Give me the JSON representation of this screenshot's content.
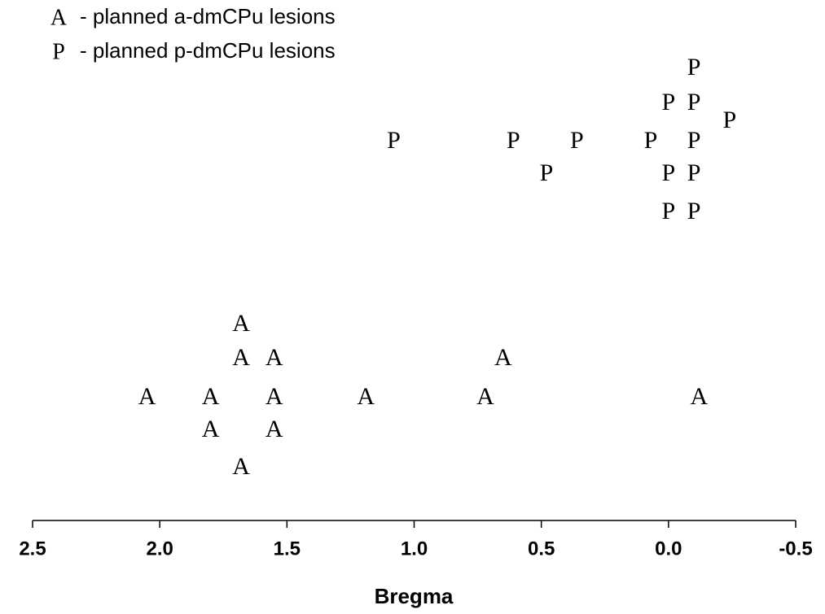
{
  "chart_data": {
    "type": "strip",
    "x_label": "Bregma",
    "xlim": [
      2.5,
      -0.5
    ],
    "xticks": [
      2.5,
      {
        "value": 2,
        "label": "2.0"
      },
      1.5,
      {
        "value": 1,
        "label": "1.0"
      },
      0.5,
      {
        "value": 0,
        "label": "0.0"
      },
      -0.5
    ],
    "color": "#000000",
    "series": [
      {
        "name": "P",
        "legend_label": "-  planned p-dmCPu lesions",
        "rows": [
          [
            -0.1
          ],
          [
            0.0,
            -0.1
          ],
          [
            -0.24
          ],
          [
            1.08,
            0.61,
            0.36,
            0.07,
            -0.1
          ],
          [
            0.48,
            0.0,
            -0.1
          ],
          [
            0.0,
            -0.1
          ]
        ]
      },
      {
        "name": "A",
        "legend_label": "-  planned a-dmCPu lesions",
        "rows": [
          [
            1.68
          ],
          [
            1.68,
            1.55,
            0.65
          ],
          [
            2.05,
            1.8,
            1.55,
            1.19,
            0.72,
            -0.12
          ],
          [
            1.8,
            1.55
          ],
          [
            1.68
          ]
        ]
      }
    ]
  }
}
